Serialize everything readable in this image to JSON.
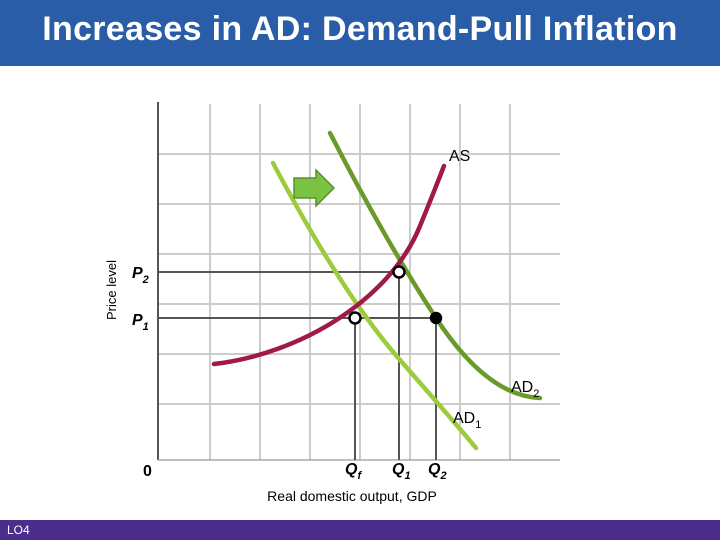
{
  "header": {
    "title": "Increases in AD: Demand-Pull Inflation"
  },
  "footer": {
    "label": "LO4"
  },
  "diagram": {
    "y_axis_label": "Price level",
    "x_axis_label": "Real domestic output, GDP",
    "origin_label": "0",
    "curves": {
      "as": "AS",
      "ad1": {
        "base": "AD",
        "sub": "1"
      },
      "ad2": {
        "base": "AD",
        "sub": "2"
      }
    },
    "price_levels": {
      "p2": {
        "base": "P",
        "sub": "2"
      },
      "p1": {
        "base": "P",
        "sub": "1"
      }
    },
    "quantities": {
      "qf": {
        "base": "Q",
        "sub": "f"
      },
      "q1": {
        "base": "Q",
        "sub": "1"
      },
      "q2": {
        "base": "Q",
        "sub": "2"
      }
    },
    "colors": {
      "header": "#2a5da8",
      "footer": "#4b2d8c",
      "as_curve": "#a0194b",
      "ad1_curve": "#9ccb3b",
      "ad2_curve": "#6a9a2a",
      "arrow": "#7cc242",
      "grid": "#cccccc"
    },
    "shift_arrow_icon": "right-arrow-icon"
  }
}
